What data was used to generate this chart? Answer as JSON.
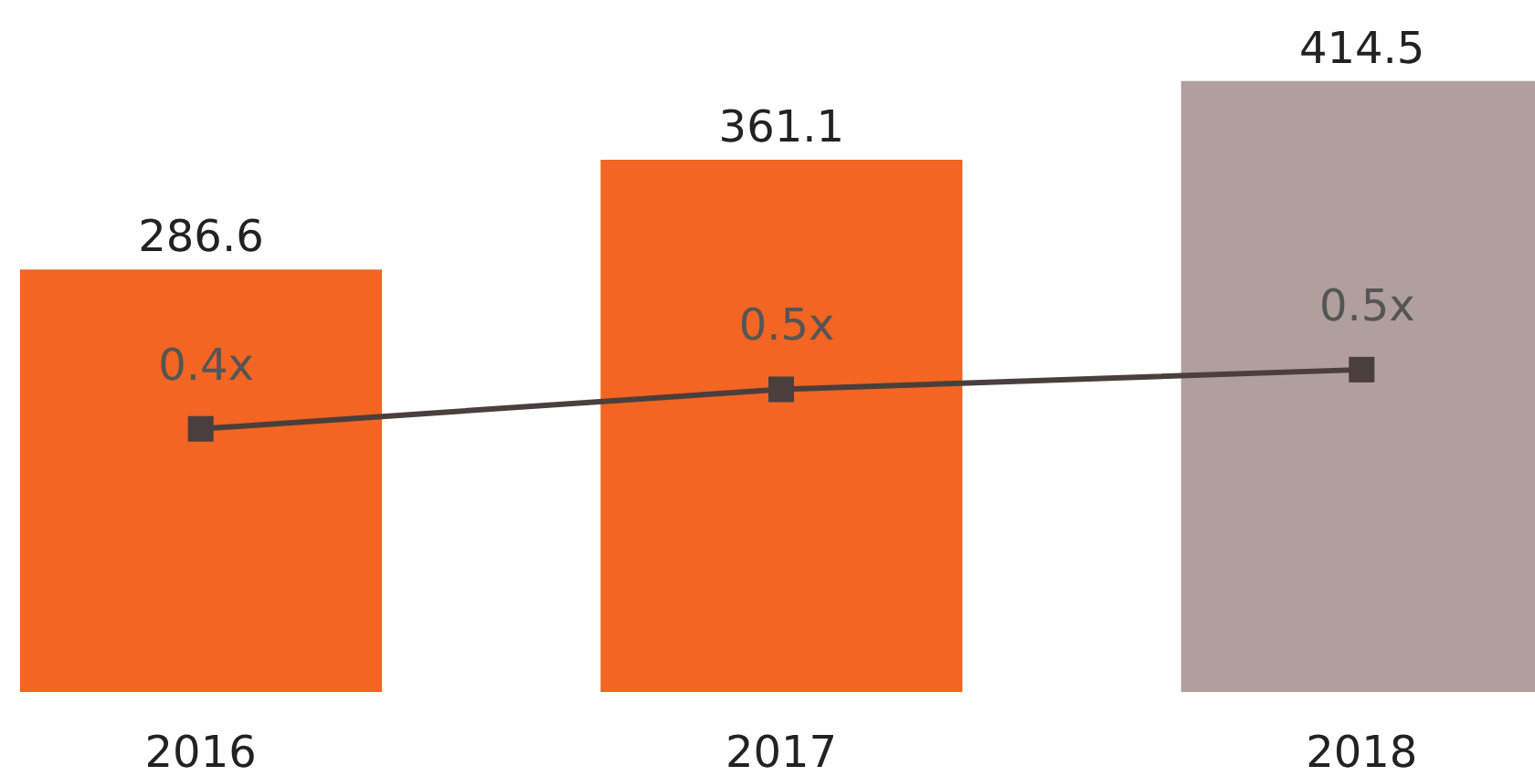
{
  "chart_data": {
    "type": "bar",
    "categories": [
      "2016",
      "2017",
      "2018"
    ],
    "series": [
      {
        "colors": [
          "#f26522",
          "#f26522",
          "#b09f9c"
        ],
        "values": [
          286.6,
          361.1,
          414.5
        ],
        "data_labels": true
      },
      {
        "type": "line",
        "axis": "y2",
        "color": "#4a3f3c",
        "values": [
          0.4,
          0.46,
          0.49
        ],
        "value_labels": [
          "0.4x",
          "0.5x",
          "0.5x"
        ],
        "marker": "square"
      }
    ]
  }
}
